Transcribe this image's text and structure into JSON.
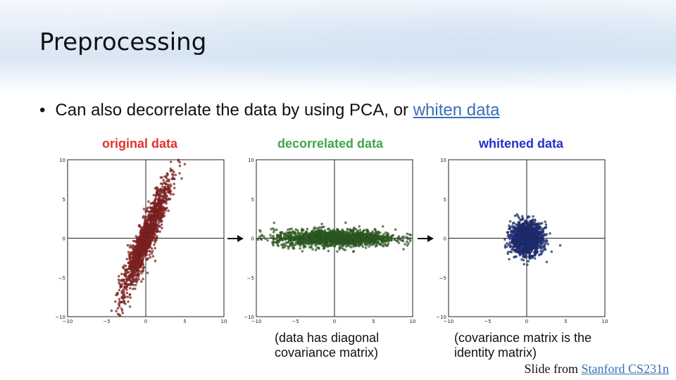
{
  "slide": {
    "title": "Preprocessing",
    "bullet": "Can also decorrelate the data by using PCA, or",
    "bullet_link": "whiten data",
    "caption_decorrelated": [
      "(data has diagonal",
      "covariance matrix)"
    ],
    "caption_whitened": [
      "(covariance matrix is the",
      "identity matrix)"
    ],
    "credit_prefix": "Slide from",
    "credit_link": "Stanford CS231n"
  },
  "colors": {
    "original": "#a01f1f",
    "decorrelated": "#2d6b1e",
    "whitened": "#1c2f8c",
    "link": "#3a6fb3"
  },
  "chart_data": [
    {
      "type": "scatter",
      "title": "original data",
      "title_color": "#e0342b",
      "xlim": [
        -10,
        10
      ],
      "ylim": [
        -10,
        10
      ],
      "x_ticks": [
        "−10",
        "−5",
        "0",
        "5",
        "10"
      ],
      "y_ticks": [
        "10",
        "5",
        "0",
        "−5",
        "−10"
      ],
      "distribution": {
        "mean": [
          0,
          0
        ],
        "principal_angle_deg": 68,
        "std_major": 3.9,
        "std_minor": 0.55,
        "n": 1500
      }
    },
    {
      "type": "scatter",
      "title": "decorrelated data",
      "title_color": "#3fa64a",
      "xlim": [
        -10,
        10
      ],
      "ylim": [
        -10,
        10
      ],
      "x_ticks": [
        "−10",
        "−5",
        "0",
        "5",
        "10"
      ],
      "y_ticks": [
        "10",
        "5",
        "0",
        "−5",
        "−10"
      ],
      "distribution": {
        "mean": [
          0,
          0
        ],
        "principal_angle_deg": 0,
        "std_major": 3.9,
        "std_minor": 0.55,
        "n": 1500
      }
    },
    {
      "type": "scatter",
      "title": "whitened data",
      "title_color": "#2233c8",
      "xlim": [
        -10,
        10
      ],
      "ylim": [
        -10,
        10
      ],
      "x_ticks": [
        "−10",
        "−5",
        "0",
        "5",
        "10"
      ],
      "y_ticks": [
        "10",
        "5",
        "0",
        "−5",
        "−10"
      ],
      "distribution": {
        "mean": [
          0,
          0
        ],
        "principal_angle_deg": 0,
        "std_major": 1.0,
        "std_minor": 1.0,
        "n": 1500
      }
    }
  ]
}
